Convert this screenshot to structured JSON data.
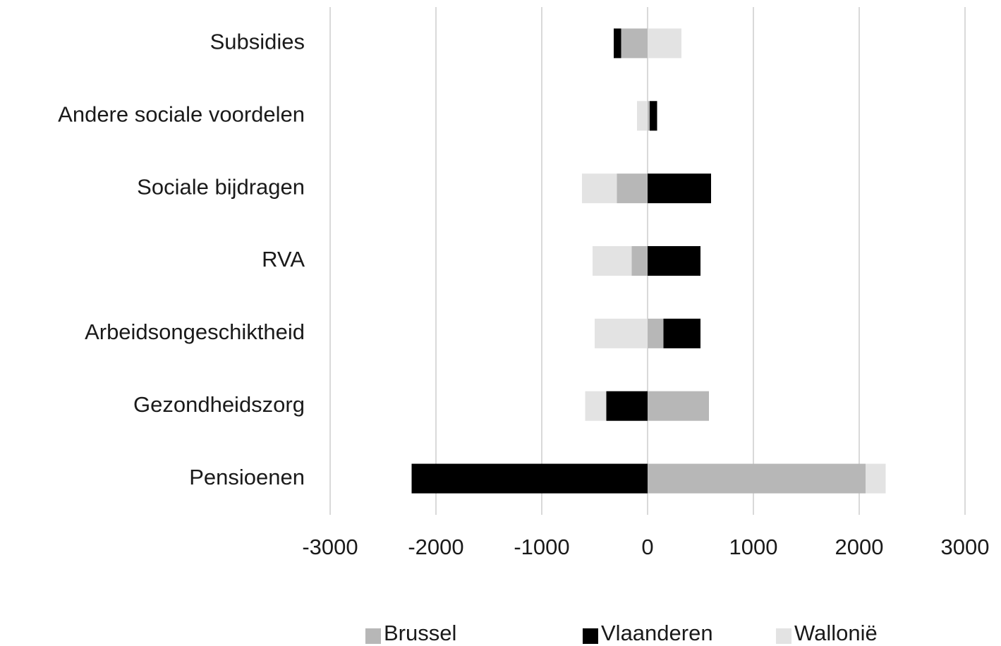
{
  "chart_data": {
    "type": "bar",
    "orientation": "horizontal",
    "stacked": true,
    "categories": [
      "Subsidies",
      "Andere sociale voordelen",
      "Sociale bijdragen",
      "RVA",
      "Arbeidsongeschiktheid",
      "Gezondheidszorg",
      "Pensioenen"
    ],
    "series": [
      {
        "name": "Brussel",
        "color": "#b7b7b7",
        "values": [
          -250,
          20,
          -290,
          -150,
          150,
          580,
          2060
        ]
      },
      {
        "name": "Vlaanderen",
        "color": "#000000",
        "values": [
          -70,
          70,
          600,
          500,
          350,
          -390,
          -2230
        ]
      },
      {
        "name": "Wallonië",
        "color": "#e3e3e3",
        "values": [
          320,
          -100,
          -330,
          -370,
          -500,
          -200,
          190
        ]
      }
    ],
    "xlim": [
      -3000,
      3000
    ],
    "xticks": [
      -3000,
      -2000,
      -1000,
      0,
      1000,
      2000,
      3000
    ],
    "grid": true,
    "legend": "bottom"
  }
}
